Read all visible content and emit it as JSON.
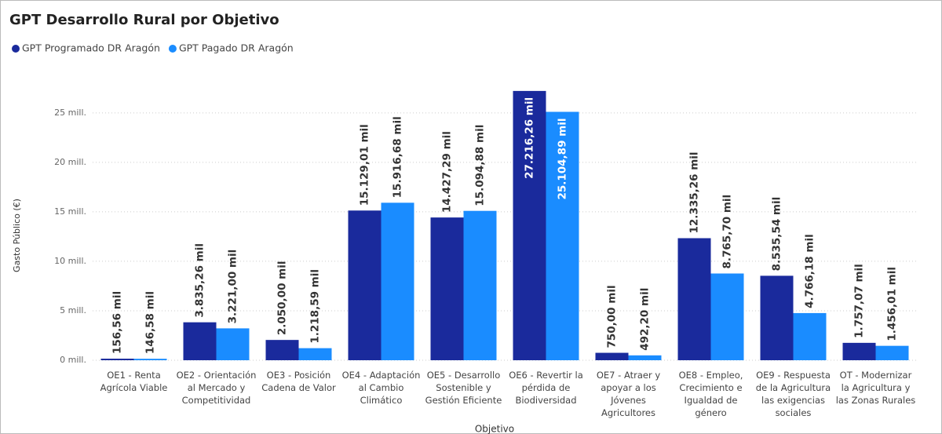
{
  "chart_data": {
    "type": "bar",
    "title": "GPT Desarrollo Rural por Objetivo",
    "x_label": "Objetivo",
    "y_label": "Gasto Público (€)",
    "categories": [
      "OE1 - Renta Agrícola Viable",
      "OE2 - Orientación al Mercado y Competitividad",
      "OE3 - Posición Cadena de Valor",
      "OE4 - Adaptación al Cambio Climático",
      "OE5 - Desarrollo Sostenible y Gestión Eficiente",
      "OE6 - Revertir la pérdida de Biodiversidad",
      "OE7 - Atraer y apoyar a los Jóvenes Agricultores",
      "OE8 - Empleo, Crecimiento e Igualdad de género",
      "OE9 - Respuesta de la Agricultura las exigencias sociales",
      "OT - Modernizar la Agricultura y las Zonas Rurales"
    ],
    "series": [
      {
        "name": "GPT Programado DR Aragón",
        "color": "#1a2a9c",
        "values": [
          156560,
          3835260,
          2050000,
          15129010,
          14427290,
          27216260,
          750000,
          12335260,
          8535540,
          1757070
        ],
        "value_labels": [
          "156,56 mil",
          "3.835,26 mil",
          "2.050,00 mil",
          "15.129,01 mil",
          "14.427,29 mil",
          "27.216,26 mil",
          "750,00 mil",
          "12.335,26 mil",
          "8.535,54 mil",
          "1.757,07 mil"
        ]
      },
      {
        "name": "GPT Pagado DR Aragón",
        "color": "#1a8cff",
        "values": [
          146580,
          3221000,
          1218590,
          15916680,
          15094880,
          25104890,
          492200,
          8765700,
          4766180,
          1456010
        ],
        "value_labels": [
          "146,58 mil",
          "3.221,00 mil",
          "1.218,59 mil",
          "15.916,68 mil",
          "15.094,88 mil",
          "25.104,89 mil",
          "492,20 mil",
          "8.765,70 mil",
          "4.766,18 mil",
          "1.456,01 mil"
        ]
      }
    ],
    "ylim": [
      0,
      28000000
    ],
    "yticks": [
      {
        "value": 0,
        "label": "0 mill."
      },
      {
        "value": 5000000,
        "label": "5 mill."
      },
      {
        "value": 10000000,
        "label": "10 mill."
      },
      {
        "value": 15000000,
        "label": "15 mill."
      },
      {
        "value": 20000000,
        "label": "20 mill."
      },
      {
        "value": 25000000,
        "label": "25 mill."
      }
    ],
    "grid": true
  }
}
